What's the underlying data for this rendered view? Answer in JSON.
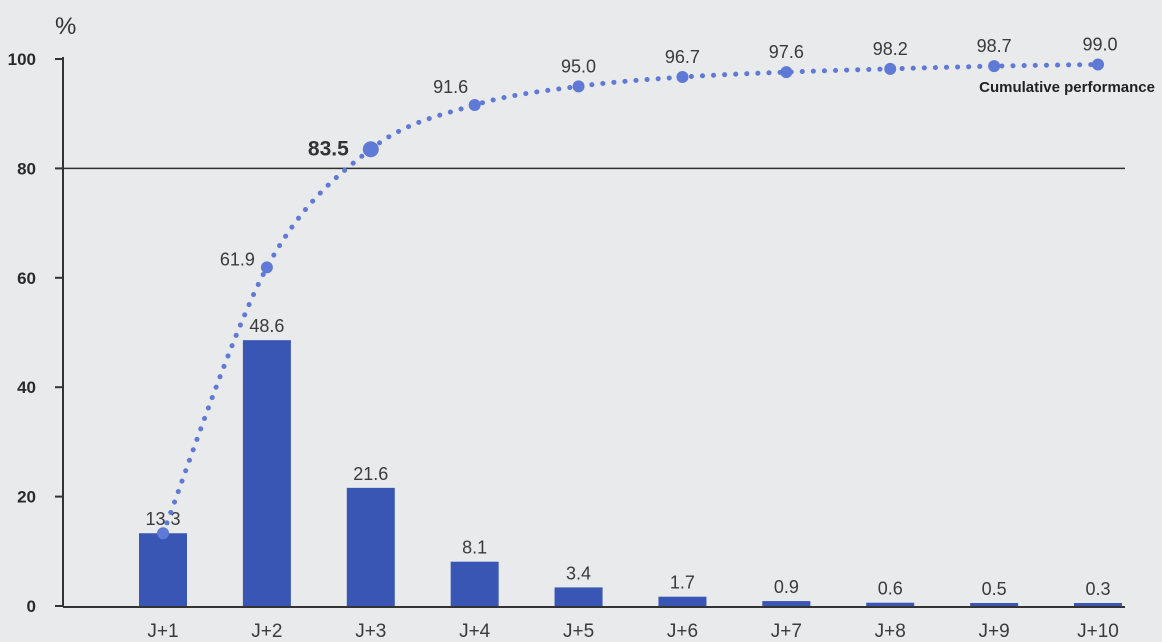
{
  "chart_data": {
    "type": "bar",
    "unit_label": "%",
    "categories": [
      "J+1",
      "J+2",
      "J+3",
      "J+4",
      "J+5",
      "J+6",
      "J+7",
      "J+8",
      "J+9",
      "J+10"
    ],
    "bar_values": [
      13.3,
      48.6,
      21.6,
      8.1,
      3.4,
      1.7,
      0.9,
      0.6,
      0.5,
      0.3
    ],
    "bar_labels": [
      "13.3",
      "48.6",
      "21.6",
      "8.1",
      "3.4",
      "1.7",
      "0.9",
      "0.6",
      "0.5",
      "0.3"
    ],
    "cumulative_values": [
      13.3,
      61.9,
      83.5,
      91.6,
      95.0,
      96.7,
      97.6,
      98.2,
      98.7,
      99.0
    ],
    "cumulative_labels": [
      "61.9",
      "83.5",
      "91.6",
      "95.0",
      "96.7",
      "97.6",
      "98.2",
      "98.7",
      "99.0"
    ],
    "cumulative_series_name": "Cumulative performance",
    "reference_line": 80,
    "ylim": [
      0,
      100
    ],
    "yticks": [
      "0",
      "20",
      "40",
      "60",
      "80",
      "100"
    ],
    "grid": false,
    "colors": {
      "bar": "#3a56b4",
      "cumulative": "#5f79d6",
      "axis": "#333333",
      "background": "#e9eaec"
    }
  }
}
